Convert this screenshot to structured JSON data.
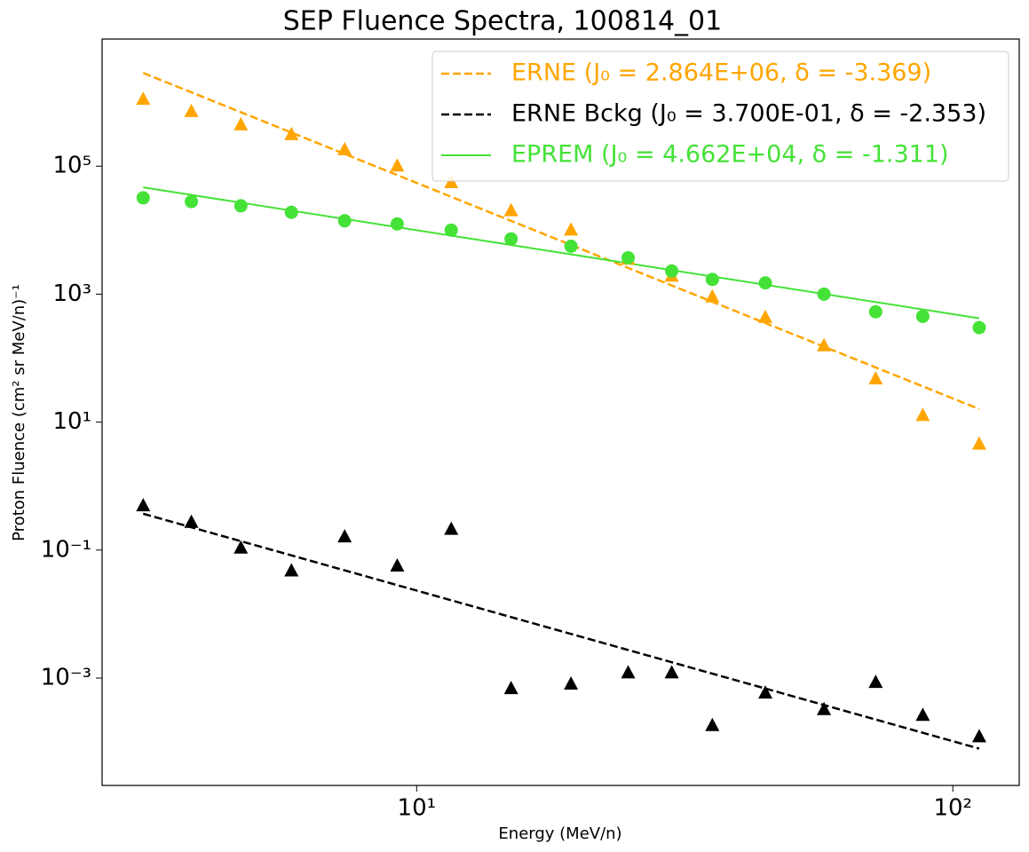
{
  "chart_data": {
    "type": "scatter",
    "title": "SEP Fluence Spectra, 100814_01",
    "xlabel": "Energy (MeV/n)",
    "ylabel": "Proton Fluence (cm² sr MeV/n)⁻¹",
    "log_x": true,
    "log_y": true,
    "xlim": [
      2.59,
      133
    ],
    "ylim": [
      2.1e-05,
      9700000
    ],
    "xticks": [
      {
        "value": 10,
        "label": "10¹"
      },
      {
        "value": 100,
        "label": "10²"
      }
    ],
    "yticks": [
      {
        "value": 0.001,
        "label": "10⁻³"
      },
      {
        "value": 0.1,
        "label": "10⁻¹"
      },
      {
        "value": 10,
        "label": "10¹"
      },
      {
        "value": 1000,
        "label": "10³"
      },
      {
        "value": 100000,
        "label": "10⁵"
      }
    ],
    "x": [
      3.09,
      3.8,
      4.7,
      5.84,
      7.34,
      9.2,
      11.6,
      15.0,
      19.4,
      24.8,
      29.9,
      35.6,
      44.7,
      57.5,
      71.8,
      87.9,
      112
    ],
    "series": [
      {
        "marker": "triangle",
        "color": "#ffa500",
        "values": [
          1100000,
          710000,
          440000,
          310000,
          180000,
          100000,
          55000,
          20000,
          10000,
          3500,
          1900,
          900,
          430,
          155,
          47,
          12.6,
          4.5
        ]
      },
      {
        "marker": "circle",
        "color": "#44e236",
        "values": [
          32000,
          28000,
          24000,
          19000,
          14000,
          12500,
          10000,
          7300,
          5600,
          3700,
          2300,
          1700,
          1500,
          1000,
          530,
          450,
          300
        ]
      },
      {
        "marker": "triangle",
        "color": "#000000",
        "values": [
          0.49,
          0.27,
          0.107,
          0.047,
          0.16,
          0.056,
          0.21,
          0.00068,
          0.0008,
          0.0012,
          0.0012,
          0.00018,
          0.00058,
          0.00032,
          0.00085,
          0.00026,
          0.00012
        ]
      }
    ],
    "fits": [
      {
        "name": "ERNE (J₀ = 2.864E+06, δ = -3.369)",
        "color": "#ffa500",
        "dashed": true,
        "x": [
          3.09,
          112
        ],
        "values": [
          2864000,
          16
        ]
      },
      {
        "name": "ERNE Bckg (J₀ = 3.700E-01, δ = -2.353)",
        "color": "#000000",
        "dashed": true,
        "x": [
          3.09,
          112
        ],
        "values": [
          0.37,
          7.9e-05
        ]
      },
      {
        "name": "EPREM (J₀ = 4.662E+04, δ = -1.311)",
        "color": "#44e236",
        "dashed": false,
        "x": [
          3.09,
          112
        ],
        "values": [
          46620,
          420
        ]
      }
    ],
    "legend": "upper right"
  }
}
